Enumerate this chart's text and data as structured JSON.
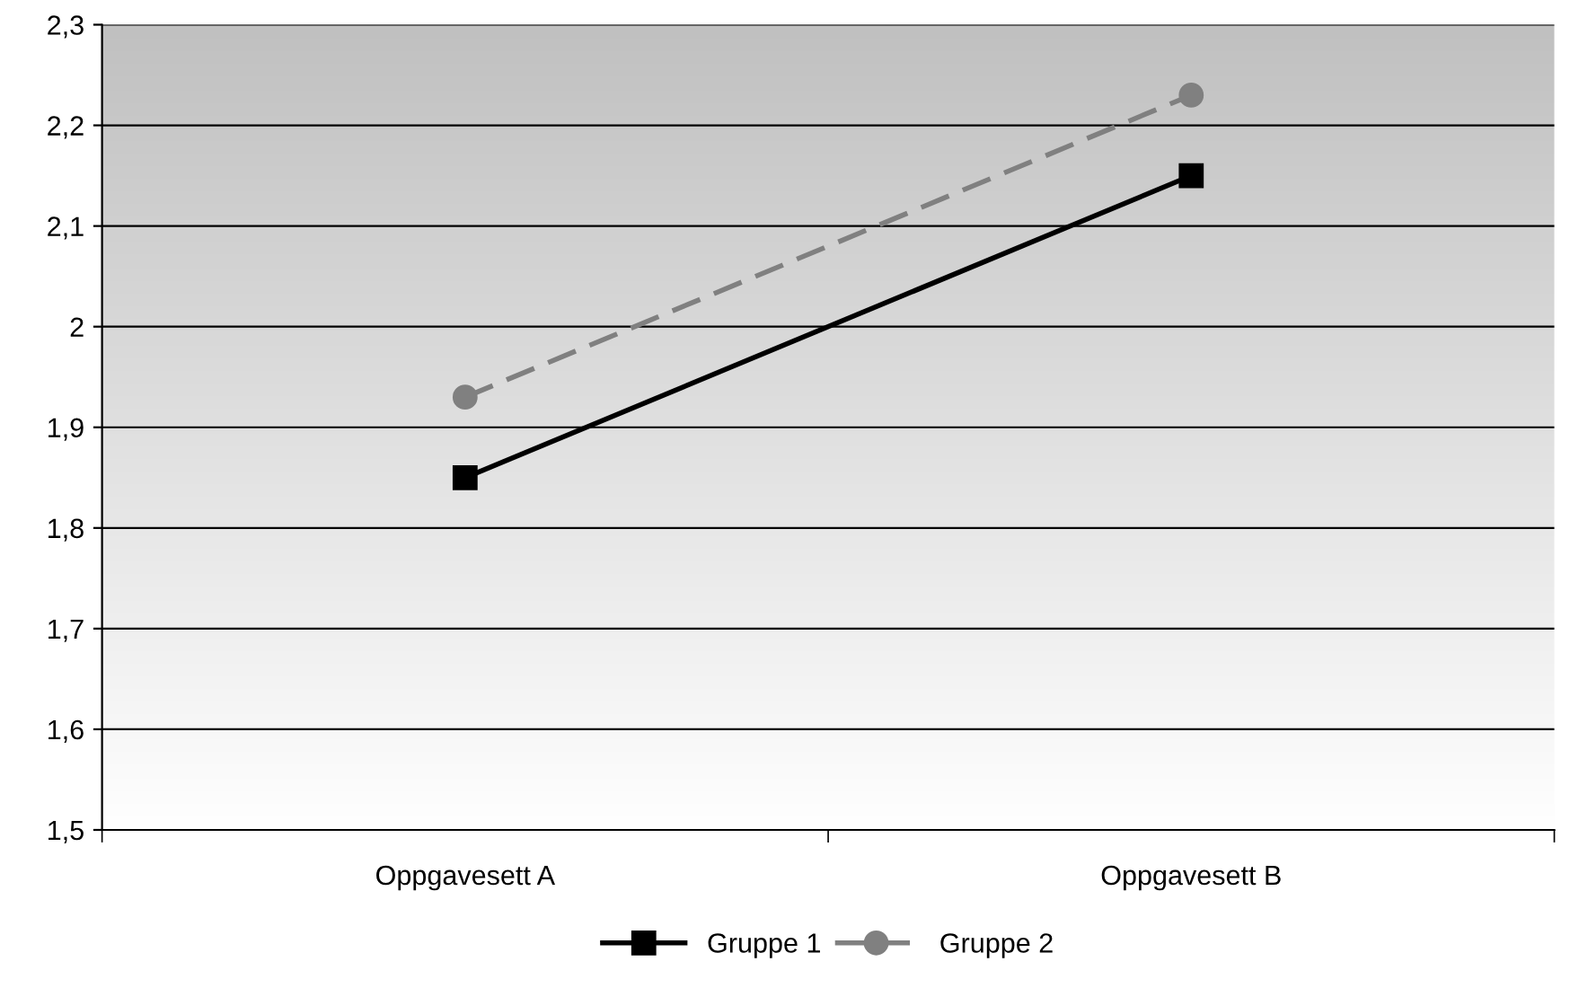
{
  "chart_data": {
    "type": "line",
    "categories": [
      "Oppgavesett A",
      "Oppgavesett B"
    ],
    "series": [
      {
        "name": "Gruppe 1",
        "color": "#000000",
        "values": [
          1.85,
          2.15
        ],
        "marker": "square",
        "line_style": "solid"
      },
      {
        "name": "Gruppe 2",
        "color": "#808080",
        "values": [
          1.93,
          2.23
        ],
        "marker": "circle",
        "line_style": "dashed"
      }
    ],
    "ylim": [
      1.5,
      2.3
    ],
    "yticks": [
      {
        "value": 1.5,
        "label": "1,5"
      },
      {
        "value": 1.6,
        "label": "1,6"
      },
      {
        "value": 1.7,
        "label": "1,7"
      },
      {
        "value": 1.8,
        "label": "1,8"
      },
      {
        "value": 1.9,
        "label": "1,9"
      },
      2,
      {
        "value": 2.1,
        "label": "2,1"
      },
      {
        "value": 2.2,
        "label": "2,2"
      },
      {
        "value": 2.3,
        "label": "2,3"
      }
    ],
    "grid": "y",
    "legend": "bottom"
  }
}
